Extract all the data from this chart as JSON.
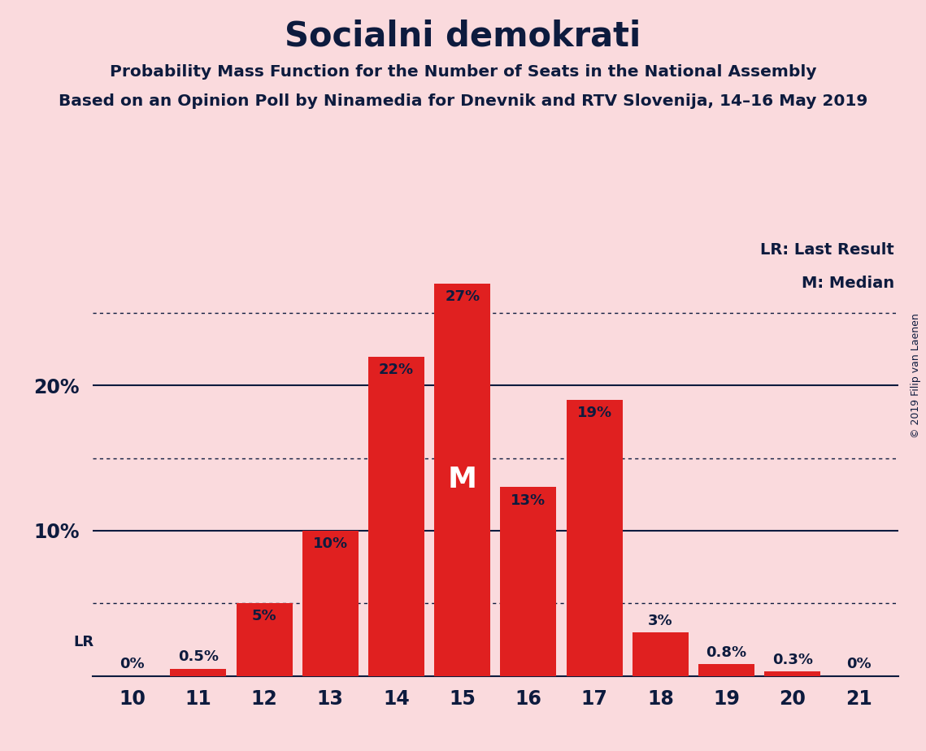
{
  "title": "Socialni demokrati",
  "subtitle1": "Probability Mass Function for the Number of Seats in the National Assembly",
  "subtitle2": "Based on an Opinion Poll by Ninamedia for Dnevnik and RTV Slovenija, 14–16 May 2019",
  "copyright": "© 2019 Filip van Laenen",
  "categories": [
    10,
    11,
    12,
    13,
    14,
    15,
    16,
    17,
    18,
    19,
    20,
    21
  ],
  "values": [
    0.0,
    0.5,
    5.0,
    10.0,
    22.0,
    27.0,
    13.0,
    19.0,
    3.0,
    0.8,
    0.3,
    0.0
  ],
  "bar_color": "#e02020",
  "background_color": "#fadadd",
  "text_color": "#0d1b3e",
  "label_color_dark": "#0d1b3e",
  "label_color_light": "#ffffff",
  "ylim": [
    0,
    30
  ],
  "solid_grid_levels": [
    10,
    20
  ],
  "dotted_grid_levels": [
    5,
    15,
    25
  ],
  "lr_seat": 10,
  "median_seat": 15,
  "legend_lr": "LR: Last Result",
  "legend_m": "M: Median",
  "bar_labels": [
    "0%",
    "0.5%",
    "5%",
    "10%",
    "22%",
    "27%",
    "13%",
    "19%",
    "3%",
    "0.8%",
    "0.3%",
    "0%"
  ]
}
